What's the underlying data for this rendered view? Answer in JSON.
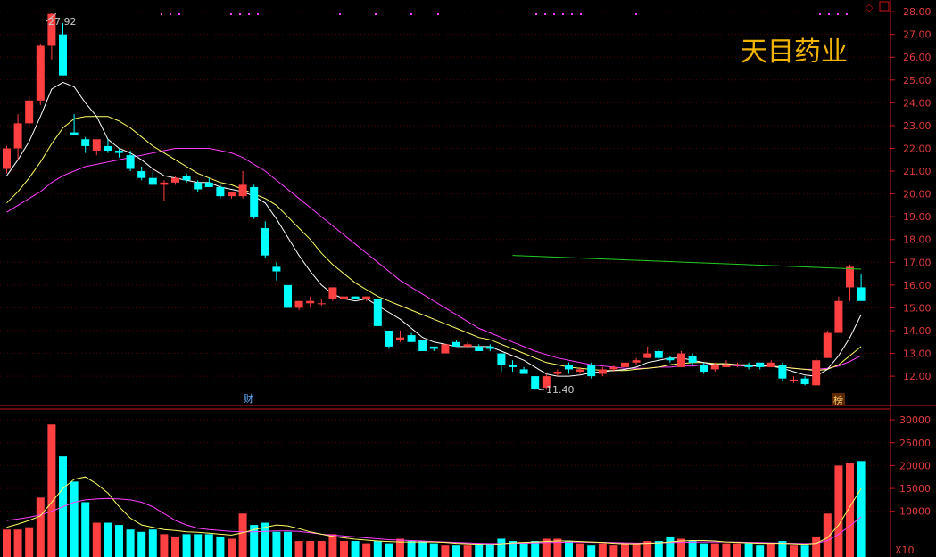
{
  "stock": {
    "name": "天目药业"
  },
  "toolbar": {
    "diamond_icon": "diamond-icon",
    "window_icon": "window-icon"
  },
  "colors": {
    "up": "#ff4040",
    "down": "#00ffff",
    "ma5": "#ffffff",
    "ma10": "#ffff66",
    "ma20": "#ff40ff",
    "trend": "#22cc22",
    "grid": "#5a0000",
    "axis": "#c81818",
    "title": "#f0b400"
  },
  "annotations": {
    "high": "27.92",
    "low": "11.40",
    "caibao": "财",
    "bang": "榜"
  },
  "chart_data": [
    {
      "type": "candlestick",
      "ylim": [
        11.3,
        28.2
      ],
      "y_ticks": [
        "28.00",
        "27.00",
        "26.00",
        "25.00",
        "24.00",
        "23.00",
        "22.00",
        "21.00",
        "20.00",
        "19.00",
        "18.00",
        "17.00",
        "16.00",
        "15.00",
        "14.00",
        "13.00",
        "12.00"
      ],
      "grid": true,
      "ohlc": [
        [
          21.1,
          22.1,
          20.9,
          22.0
        ],
        [
          22.0,
          23.5,
          21.5,
          23.1
        ],
        [
          23.1,
          24.3,
          22.9,
          24.1
        ],
        [
          24.1,
          26.6,
          23.9,
          26.5
        ],
        [
          26.5,
          27.92,
          25.9,
          27.9
        ],
        [
          27.0,
          27.5,
          25.2,
          25.2
        ],
        [
          22.7,
          23.5,
          22.6,
          22.6
        ],
        [
          22.4,
          22.5,
          21.8,
          22.1
        ],
        [
          21.9,
          22.4,
          21.7,
          22.4
        ],
        [
          22.1,
          22.4,
          21.8,
          21.9
        ],
        [
          21.9,
          22.0,
          21.6,
          21.8
        ],
        [
          21.7,
          21.9,
          21.0,
          21.1
        ],
        [
          21.0,
          21.2,
          20.6,
          20.7
        ],
        [
          20.7,
          21.0,
          20.4,
          20.4
        ],
        [
          20.4,
          20.6,
          19.7,
          20.5
        ],
        [
          20.5,
          20.8,
          20.4,
          20.7
        ],
        [
          20.8,
          20.9,
          20.5,
          20.6
        ],
        [
          20.5,
          20.6,
          20.1,
          20.2
        ],
        [
          20.5,
          20.7,
          20.3,
          20.3
        ],
        [
          20.3,
          20.4,
          19.8,
          19.9
        ],
        [
          19.9,
          20.1,
          19.8,
          20.1
        ],
        [
          19.9,
          21.0,
          19.8,
          20.4
        ],
        [
          20.3,
          20.4,
          18.9,
          19.0
        ],
        [
          18.5,
          18.8,
          17.2,
          17.3
        ],
        [
          16.8,
          17.0,
          16.2,
          16.6
        ],
        [
          16.0,
          16.0,
          15.0,
          15.0
        ],
        [
          15.0,
          15.3,
          14.9,
          15.3
        ],
        [
          15.2,
          15.5,
          15.0,
          15.3
        ],
        [
          15.2,
          15.4,
          15.1,
          15.2
        ],
        [
          15.4,
          15.9,
          15.3,
          15.9
        ],
        [
          15.4,
          15.9,
          15.3,
          15.5
        ],
        [
          15.5,
          15.5,
          15.4,
          15.4
        ],
        [
          15.4,
          15.5,
          15.3,
          15.5
        ],
        [
          15.4,
          15.4,
          14.2,
          14.2
        ],
        [
          14.0,
          14.0,
          13.2,
          13.3
        ],
        [
          13.6,
          14.0,
          13.5,
          13.7
        ],
        [
          13.8,
          13.9,
          13.5,
          13.5
        ],
        [
          13.6,
          13.6,
          13.1,
          13.1
        ],
        [
          13.3,
          13.3,
          13.1,
          13.2
        ],
        [
          13.0,
          13.4,
          13.0,
          13.4
        ],
        [
          13.5,
          13.6,
          13.3,
          13.3
        ],
        [
          13.3,
          13.5,
          13.2,
          13.4
        ],
        [
          13.3,
          13.4,
          13.1,
          13.1
        ],
        [
          13.3,
          13.4,
          13.1,
          13.2
        ],
        [
          13.0,
          13.0,
          12.2,
          12.5
        ],
        [
          12.5,
          12.7,
          12.2,
          12.4
        ],
        [
          12.3,
          12.4,
          12.1,
          12.1
        ],
        [
          12.0,
          12.0,
          11.4,
          11.45
        ],
        [
          11.5,
          12.1,
          11.4,
          12.0
        ],
        [
          12.1,
          12.3,
          12.0,
          12.2
        ],
        [
          12.5,
          12.6,
          12.1,
          12.3
        ],
        [
          12.2,
          12.4,
          12.1,
          12.3
        ],
        [
          12.5,
          12.6,
          11.9,
          12.0
        ],
        [
          12.1,
          12.4,
          12.0,
          12.3
        ],
        [
          12.3,
          12.5,
          12.2,
          12.4
        ],
        [
          12.4,
          12.7,
          12.4,
          12.6
        ],
        [
          12.6,
          12.8,
          12.5,
          12.7
        ],
        [
          12.8,
          13.3,
          12.8,
          13.0
        ],
        [
          13.1,
          13.2,
          12.7,
          12.8
        ],
        [
          12.8,
          12.9,
          12.6,
          12.7
        ],
        [
          12.4,
          13.1,
          12.4,
          13.0
        ],
        [
          12.9,
          13.0,
          12.5,
          12.6
        ],
        [
          12.5,
          12.6,
          12.1,
          12.2
        ],
        [
          12.3,
          12.6,
          12.2,
          12.5
        ],
        [
          12.4,
          12.7,
          12.4,
          12.5
        ],
        [
          12.5,
          12.6,
          12.4,
          12.5
        ],
        [
          12.5,
          12.6,
          12.3,
          12.4
        ],
        [
          12.6,
          12.6,
          12.3,
          12.4
        ],
        [
          12.4,
          12.7,
          12.4,
          12.6
        ],
        [
          12.5,
          12.6,
          11.8,
          11.9
        ],
        [
          11.8,
          12.0,
          11.7,
          11.85
        ],
        [
          11.9,
          12.0,
          11.6,
          11.65
        ],
        [
          11.6,
          12.8,
          11.6,
          12.7
        ],
        [
          12.8,
          14.0,
          12.8,
          13.9
        ],
        [
          13.9,
          15.5,
          13.9,
          15.3
        ],
        [
          15.9,
          16.9,
          15.3,
          16.8
        ],
        [
          15.9,
          16.5,
          15.3,
          15.3
        ]
      ],
      "ma5": [
        20.8,
        21.5,
        22.3,
        23.4,
        24.6,
        24.9,
        24.7,
        24.0,
        23.4,
        22.4,
        22.0,
        21.8,
        21.5,
        21.1,
        20.8,
        20.7,
        20.6,
        20.5,
        20.5,
        20.3,
        20.2,
        20.1,
        19.9,
        19.6,
        18.9,
        18.1,
        17.3,
        16.6,
        16.0,
        15.6,
        15.4,
        15.3,
        15.4,
        15.1,
        14.8,
        14.5,
        14.1,
        13.7,
        13.5,
        13.4,
        13.3,
        13.3,
        13.3,
        13.3,
        13.1,
        12.9,
        12.7,
        12.4,
        12.1,
        12.0,
        12.0,
        12.05,
        12.15,
        12.2,
        12.25,
        12.3,
        12.4,
        12.6,
        12.7,
        12.8,
        12.8,
        12.7,
        12.6,
        12.5,
        12.5,
        12.5,
        12.45,
        12.45,
        12.45,
        12.35,
        12.2,
        12.05,
        12.0,
        12.3,
        12.9,
        13.7,
        14.7
      ],
      "ma10": [
        19.6,
        20.1,
        20.7,
        21.4,
        22.2,
        22.9,
        23.3,
        23.4,
        23.4,
        23.4,
        23.2,
        22.9,
        22.5,
        22.1,
        21.8,
        21.5,
        21.2,
        20.9,
        20.7,
        20.5,
        20.4,
        20.2,
        20.0,
        19.8,
        19.5,
        19.0,
        18.5,
        18.0,
        17.4,
        16.9,
        16.5,
        16.1,
        15.8,
        15.5,
        15.3,
        15.1,
        14.9,
        14.7,
        14.5,
        14.3,
        14.1,
        13.9,
        13.7,
        13.6,
        13.4,
        13.2,
        13.0,
        12.8,
        12.6,
        12.5,
        12.4,
        12.35,
        12.3,
        12.25,
        12.25,
        12.25,
        12.3,
        12.35,
        12.4,
        12.5,
        12.55,
        12.6,
        12.6,
        12.55,
        12.55,
        12.5,
        12.5,
        12.45,
        12.45,
        12.4,
        12.35,
        12.3,
        12.25,
        12.3,
        12.5,
        12.9,
        13.3
      ],
      "ma20": [
        19.2,
        19.5,
        19.8,
        20.1,
        20.5,
        20.8,
        21.0,
        21.2,
        21.3,
        21.4,
        21.5,
        21.6,
        21.7,
        21.8,
        21.9,
        22.0,
        22.0,
        22.0,
        22.0,
        21.9,
        21.8,
        21.6,
        21.3,
        21.0,
        20.6,
        20.2,
        19.8,
        19.4,
        19.0,
        18.6,
        18.2,
        17.8,
        17.4,
        17.0,
        16.6,
        16.2,
        15.9,
        15.6,
        15.3,
        15.0,
        14.7,
        14.4,
        14.1,
        13.9,
        13.7,
        13.5,
        13.3,
        13.1,
        12.95,
        12.8,
        12.7,
        12.6,
        12.5,
        12.45,
        12.4,
        12.35,
        12.35,
        12.35,
        12.4,
        12.4,
        12.45,
        12.45,
        12.5,
        12.5,
        12.5,
        12.45,
        12.45,
        12.45,
        12.45,
        12.4,
        12.35,
        12.3,
        12.3,
        12.35,
        12.45,
        12.65,
        12.9
      ],
      "trendline": {
        "from": [
          45,
          17.3
        ],
        "to": [
          76,
          16.7
        ]
      }
    },
    {
      "type": "bar",
      "name": "volume",
      "ylim": [
        0,
        31000
      ],
      "y_ticks": [
        "30000",
        "25000",
        "20000",
        "15000",
        "10000"
      ],
      "unit_label": "X10",
      "values": [
        6000,
        6000,
        6500,
        13000,
        29000,
        22000,
        16500,
        12000,
        7500,
        7500,
        7000,
        6000,
        5500,
        6000,
        5000,
        4500,
        5000,
        5000,
        5000,
        4500,
        4000,
        9500,
        7000,
        7500,
        5500,
        5500,
        3500,
        3500,
        3500,
        5000,
        3500,
        3500,
        3000,
        3500,
        3000,
        4000,
        3500,
        3500,
        3000,
        2500,
        2500,
        2500,
        3000,
        3000,
        4000,
        3500,
        3000,
        3500,
        4000,
        4000,
        3500,
        3000,
        2500,
        3000,
        2500,
        3000,
        3000,
        3500,
        3500,
        4500,
        4000,
        3500,
        3000,
        3000,
        3000,
        3000,
        3000,
        2500,
        3000,
        3500,
        2500,
        2500,
        4500,
        9500,
        20000,
        20500,
        21000
      ],
      "ma5": [
        6500,
        7200,
        8000,
        9000,
        12000,
        15000,
        17000,
        17500,
        16000,
        14000,
        11000,
        8500,
        7000,
        6500,
        6000,
        5800,
        5500,
        5400,
        5200,
        5000,
        4800,
        5300,
        6000,
        6500,
        7000,
        6800,
        6200,
        5500,
        5000,
        4500,
        4200,
        3900,
        3700,
        3500,
        3400,
        3300,
        3300,
        3300,
        3300,
        3200,
        3000,
        2900,
        2800,
        2700,
        2900,
        3100,
        3200,
        3300,
        3400,
        3500,
        3500,
        3400,
        3300,
        3200,
        3000,
        2900,
        2900,
        3000,
        3100,
        3300,
        3500,
        3600,
        3600,
        3500,
        3300,
        3200,
        3100,
        3000,
        3000,
        3000,
        2900,
        2800,
        3000,
        4200,
        7000,
        11000,
        15000
      ],
      "ma10": [
        8000,
        8300,
        8700,
        9200,
        10000,
        11000,
        12000,
        12500,
        12700,
        12800,
        12700,
        12500,
        12000,
        11000,
        9500,
        8000,
        7000,
        6300,
        6000,
        5800,
        5600,
        5500,
        5500,
        5600,
        5700,
        5700,
        5600,
        5300,
        5000,
        4800,
        4600,
        4400,
        4200,
        4000,
        3800,
        3700,
        3600,
        3500,
        3400,
        3300,
        3200,
        3100,
        3000,
        2950,
        2950,
        3000,
        3050,
        3100,
        3150,
        3200,
        3250,
        3250,
        3200,
        3200,
        3150,
        3100,
        3050,
        3050,
        3100,
        3150,
        3200,
        3250,
        3300,
        3300,
        3300,
        3250,
        3200,
        3150,
        3100,
        3050,
        3000,
        2950,
        3000,
        3600,
        5000,
        6800,
        8800
      ]
    }
  ]
}
